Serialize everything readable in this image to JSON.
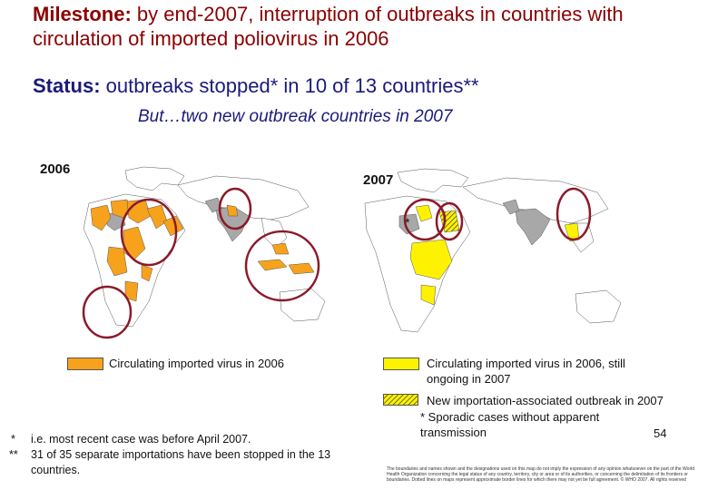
{
  "title": {
    "label": "Milestone:",
    "text": " by end-2007, interruption of outbreaks in countries with circulation of imported poliovirus in 2006"
  },
  "status": {
    "label": "Status:",
    "text": " outbreaks stopped* in 10 of 13 countries**"
  },
  "subtitle": "But…two new outbreak countries in 2007",
  "maps": {
    "left": {
      "year": "2006"
    },
    "right": {
      "year": "2007",
      "star": "*"
    }
  },
  "legend": {
    "orange": {
      "text": "Circulating imported virus in 2006",
      "color": "#F7A21C"
    },
    "yellow": {
      "text": "Circulating imported virus in 2006, still ongoing in 2007",
      "color": "#FFF200"
    },
    "hatched": {
      "text": "New importation-associated outbreak  in 2007",
      "color": "#FFF200"
    },
    "sporadic": "* Sporadic cases without apparent transmission"
  },
  "footnotes": [
    {
      "mark": "*",
      "text": "i.e. most recent case was before April 2007."
    },
    {
      "mark": "**",
      "text": "31 of 35 separate importations have been stopped in the 13 countries."
    }
  ],
  "page_number": "54",
  "disclaimer": "The boundaries and names shown and the designations used on this map do not imply the expression of any opinion whatsoever on the part of the World Health Organization concerning the legal status of any country, territory, city or area or of its authorities, or concerning the delimitation of its frontiers or boundaries. Dotted lines on maps represent approximate border lines for which there may not yet be full agreement. © WHO 2007. All rights reserved",
  "colors": {
    "title": "#8B0000",
    "status": "#1a1a7a",
    "circle": "#8B1A2B",
    "endemic": "#A8A8A8"
  }
}
